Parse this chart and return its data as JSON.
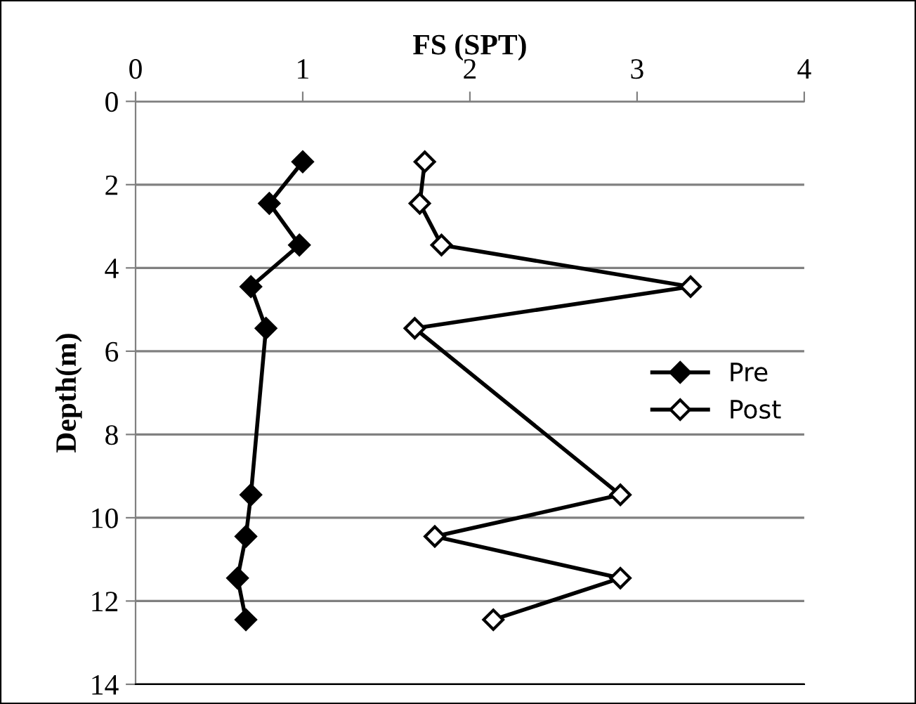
{
  "chart_data": {
    "type": "line",
    "xlabel": "FS (SPT)",
    "ylabel": "Depth(m)",
    "xlim": [
      0,
      4
    ],
    "xticks": [
      0,
      1,
      2,
      3,
      4
    ],
    "ylim": [
      14,
      0
    ],
    "yticks": [
      0,
      2,
      4,
      6,
      8,
      10,
      12,
      14
    ],
    "grid": "y",
    "legend": "right",
    "marker": "diamond",
    "line_style": "solid",
    "series": [
      {
        "name": "Pre",
        "color": "#000000",
        "x": [
          1.0,
          0.8,
          0.98,
          0.69,
          0.78,
          0.69,
          0.66,
          0.61,
          0.66
        ],
        "values": [
          1.45,
          2.45,
          3.45,
          4.45,
          5.45,
          9.45,
          10.45,
          11.45,
          12.45
        ]
      },
      {
        "name": "Post",
        "color": "#000000",
        "x": [
          1.73,
          1.7,
          1.83,
          3.32,
          1.67,
          2.9,
          1.79,
          2.9,
          2.14
        ],
        "values": [
          1.45,
          2.45,
          3.45,
          4.45,
          5.45,
          9.45,
          10.45,
          11.45,
          12.45
        ]
      }
    ]
  }
}
